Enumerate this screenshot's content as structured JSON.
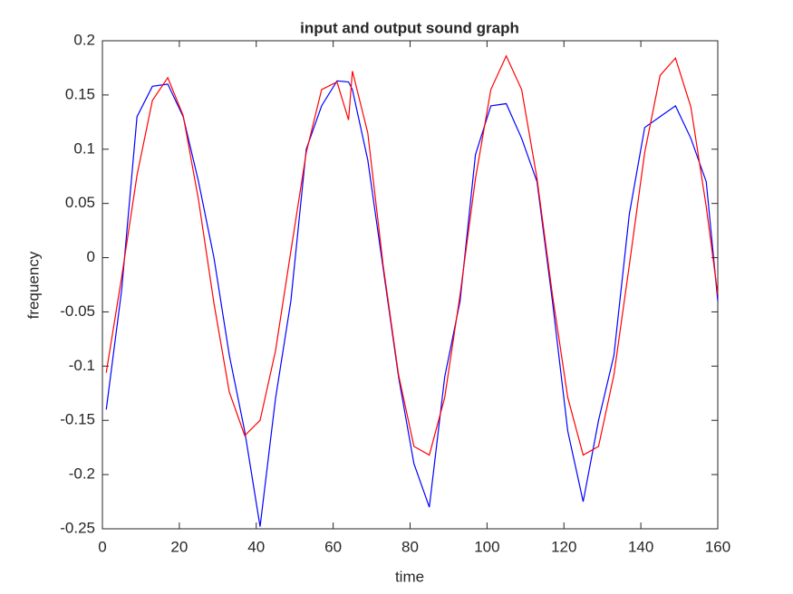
{
  "chart_data": {
    "type": "line",
    "title": "input and output sound graph",
    "x_label": "time",
    "y_label": "frequency",
    "x": [
      1,
      5,
      9,
      13,
      17,
      21,
      25,
      29,
      33,
      37,
      41,
      45,
      49,
      53,
      57,
      61,
      64,
      65,
      69,
      73,
      77,
      81,
      85,
      89,
      93,
      97,
      101,
      105,
      109,
      113,
      117,
      121,
      125,
      129,
      133,
      137,
      141,
      145,
      149,
      153,
      157,
      160
    ],
    "series": [
      {
        "color": "#0000ff",
        "values": [
          -0.14,
          -0.03,
          0.13,
          0.158,
          0.16,
          0.13,
          0.07,
          0.0,
          -0.09,
          -0.16,
          -0.248,
          -0.13,
          -0.04,
          0.1,
          0.14,
          0.163,
          0.162,
          0.155,
          0.09,
          -0.01,
          -0.11,
          -0.19,
          -0.23,
          -0.11,
          -0.04,
          0.095,
          0.14,
          0.142,
          0.11,
          0.07,
          -0.04,
          -0.16,
          -0.225,
          -0.15,
          -0.09,
          0.04,
          0.12,
          0.13,
          0.14,
          0.11,
          0.07,
          -0.04
        ]
      },
      {
        "color": "#ff0000",
        "values": [
          -0.106,
          -0.018,
          0.076,
          0.145,
          0.166,
          0.131,
          0.053,
          -0.042,
          -0.124,
          -0.164,
          -0.15,
          -0.086,
          0.006,
          0.097,
          0.155,
          0.162,
          0.127,
          0.172,
          0.115,
          -0.007,
          -0.108,
          -0.174,
          -0.182,
          -0.129,
          -0.034,
          0.073,
          0.155,
          0.186,
          0.155,
          0.073,
          -0.034,
          -0.129,
          -0.182,
          -0.174,
          -0.108,
          -0.007,
          0.097,
          0.168,
          0.184,
          0.139,
          0.047,
          -0.034
        ]
      }
    ],
    "xlim": [
      0,
      160
    ],
    "xticks": [
      0,
      20,
      40,
      60,
      80,
      100,
      120,
      140,
      160
    ],
    "ylim": [
      -0.25,
      0.2
    ],
    "yticks": [
      -0.25,
      -0.2,
      -0.15,
      -0.1,
      -0.05,
      0,
      0.05,
      0.1,
      0.15,
      0.2
    ],
    "grid": false
  }
}
